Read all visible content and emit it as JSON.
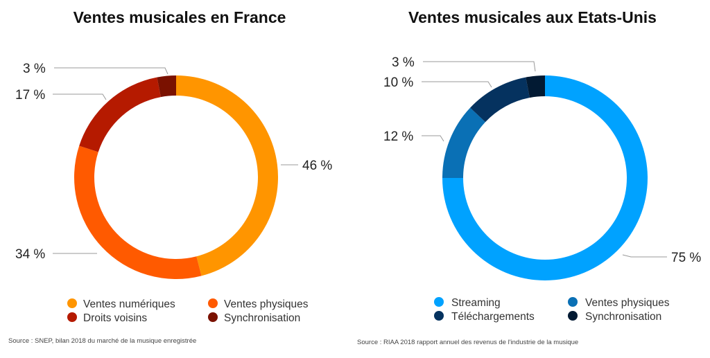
{
  "chart_data": [
    {
      "type": "pie",
      "variant": "donut",
      "title": "Ventes musicales en France",
      "categories": [
        "Ventes numériques",
        "Ventes physiques",
        "Droits voisins",
        "Synchronisation"
      ],
      "values": [
        46,
        34,
        17,
        3
      ],
      "labels": [
        "46 %",
        "34 %",
        "17 %",
        "3 %"
      ],
      "colors": [
        "#FF9500",
        "#FF5A00",
        "#B51A00",
        "#7A1100"
      ],
      "legend_position": "bottom",
      "source": "Source : SNEP, bilan 2018 du marché de la musique enregistrée"
    },
    {
      "type": "pie",
      "variant": "donut",
      "title": "Ventes musicales aux Etats-Unis",
      "categories": [
        "Streaming",
        "Ventes physiques",
        "Téléchargements",
        "Synchronisation"
      ],
      "values": [
        75,
        12,
        10,
        3
      ],
      "labels": [
        "75 %",
        "12 %",
        "10 %",
        "3 %"
      ],
      "colors": [
        "#00A2FF",
        "#0A70B5",
        "#05325F",
        "#021A33"
      ],
      "legend_position": "bottom",
      "source": "Source : RIAA 2018 rapport annuel des revenus de l'industrie de la musique"
    }
  ]
}
